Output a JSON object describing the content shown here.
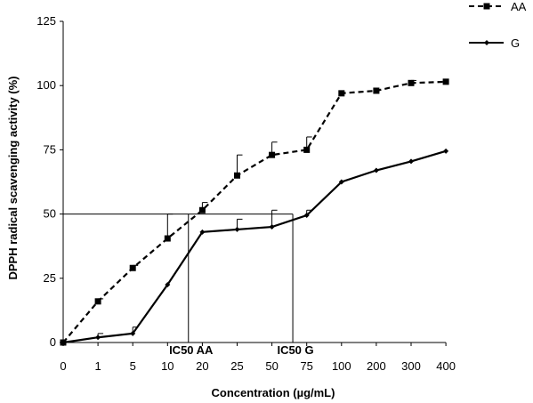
{
  "chart_data": {
    "type": "line",
    "categories": [
      "0",
      "1",
      "5",
      "10",
      "20",
      "25",
      "50",
      "75",
      "100",
      "200",
      "300",
      "400"
    ],
    "series": [
      {
        "name": "AA",
        "style": "dashed-square",
        "values": [
          0,
          16,
          29,
          40.5,
          51.5,
          65,
          73,
          75,
          97,
          98,
          101,
          101.5
        ],
        "errors": [
          0,
          1,
          1,
          9.5,
          3,
          8,
          5,
          5,
          0,
          0,
          1,
          0
        ]
      },
      {
        "name": "G",
        "style": "solid-diamond",
        "values": [
          0,
          2,
          3.5,
          22.5,
          43,
          44,
          45,
          49.5,
          62.5,
          67,
          70.5,
          74.5
        ],
        "errors": [
          0,
          1.5,
          2.5,
          0,
          0,
          4,
          6.5,
          2,
          0,
          0,
          0,
          0
        ]
      }
    ],
    "ylabel": "DPPH radical scavenging activity (%)",
    "xlabel": "Concentration (µg/mL)",
    "ylim": [
      0,
      125
    ],
    "yticks": [
      "0",
      "25",
      "50",
      "75",
      "100",
      "125"
    ],
    "grid": false,
    "legend_position": "top-right",
    "annotations": [
      {
        "label": "IC50 AA",
        "x_category_position": 3.6
      },
      {
        "label": "IC50 G",
        "x_category_position": 6.6
      }
    ],
    "reference_line_y": 50
  }
}
